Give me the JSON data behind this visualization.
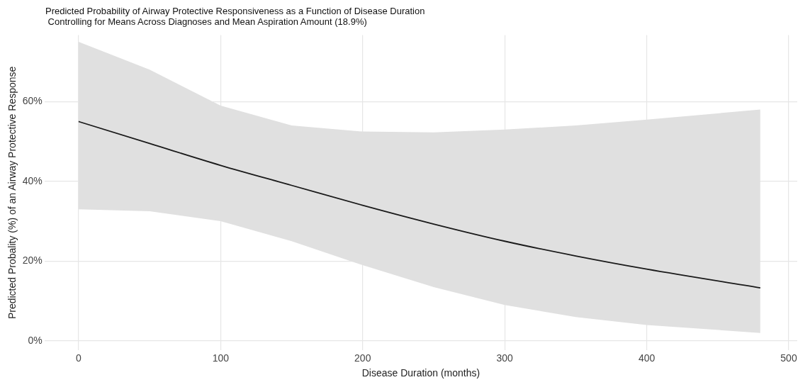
{
  "chart_data": {
    "type": "line",
    "title": "Predicted Probability of Airway Protective Responsiveness as a Function of Disease Duration",
    "subtitle": " Controlling for Means Across Diagnoses and Mean Aspiration Amount (18.9%)",
    "xlabel": "Disease Duration (months)",
    "ylabel": "Predicted Probality (%) of an Airway Protective Response",
    "x": [
      0,
      50,
      100,
      150,
      200,
      250,
      300,
      350,
      400,
      480
    ],
    "series": [
      {
        "color": "#1a1a1a",
        "values": [
          55,
          49.5,
          44,
          39,
          34,
          29.3,
          25,
          21.3,
          18,
          13.3
        ],
        "lower": [
          33,
          32.5,
          30,
          25,
          19,
          13.5,
          9,
          6,
          4,
          2
        ],
        "upper": [
          75,
          68,
          59,
          54,
          52.5,
          52.3,
          53,
          54,
          55.5,
          58
        ]
      }
    ],
    "xlim": [
      -24,
      506
    ],
    "xticks": [
      0,
      100,
      200,
      300,
      400,
      500
    ],
    "ylim": [
      -2.4,
      76.7
    ],
    "yticks": [
      {
        "value": 0,
        "label": "0%"
      },
      {
        "value": 20,
        "label": "20%"
      },
      {
        "value": 40,
        "label": "40%"
      },
      {
        "value": 60,
        "label": "60%"
      }
    ],
    "grid": true,
    "legend": false,
    "line_style": "solid",
    "marker": "none"
  }
}
